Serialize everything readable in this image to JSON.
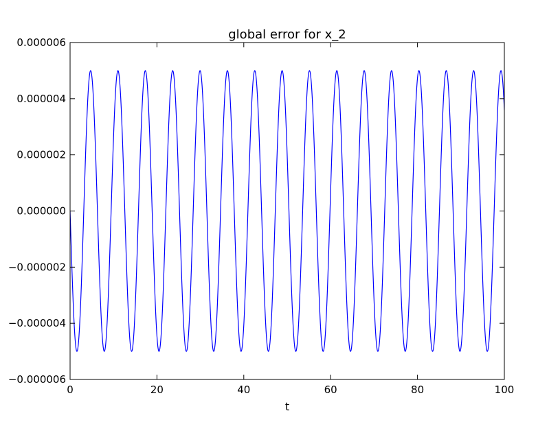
{
  "chart_data": {
    "type": "line",
    "title": "global error for x_2",
    "xlabel": "t",
    "ylabel": "",
    "xlim": [
      0,
      100
    ],
    "ylim": [
      -6e-06,
      6e-06
    ],
    "x_ticks": [
      0,
      20,
      40,
      60,
      80,
      100
    ],
    "x_tick_labels": [
      "0",
      "20",
      "40",
      "60",
      "80",
      "100"
    ],
    "y_ticks": [
      -6e-06,
      -4e-06,
      -2e-06,
      0,
      2e-06,
      4e-06,
      6e-06
    ],
    "y_tick_labels": [
      "−0.000006",
      "−0.000004",
      "−0.000002",
      "0.000000",
      "0.000002",
      "0.000004",
      "0.000006"
    ],
    "grid": false,
    "series": [
      {
        "color": "#0000ff",
        "function": "-A*sin(omega*t)",
        "amplitude": 5e-06,
        "omega": 0.9973,
        "t_range": [
          0,
          100
        ]
      }
    ]
  }
}
